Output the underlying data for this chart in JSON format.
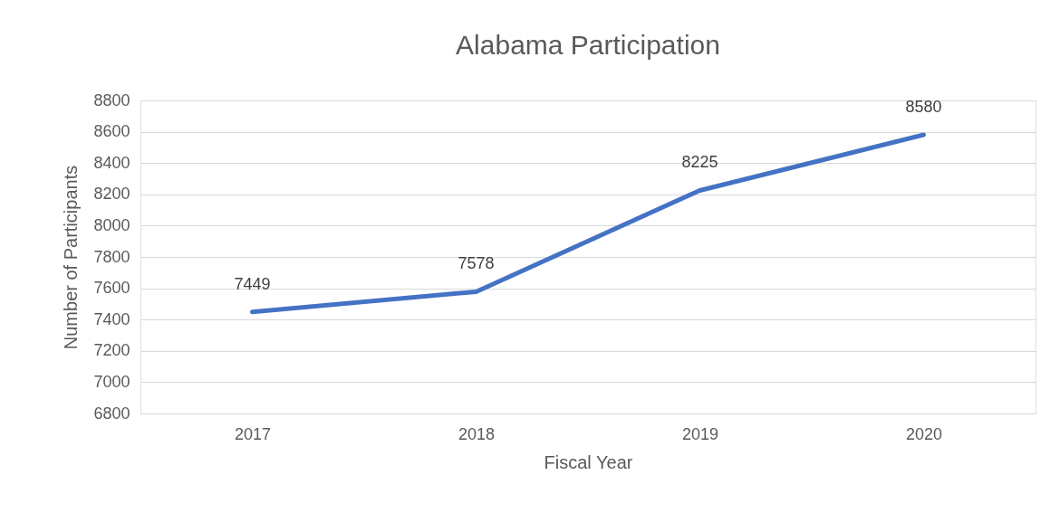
{
  "chart_data": {
    "type": "line",
    "title": "Alabama Participation",
    "xlabel": "Fiscal Year",
    "ylabel": "Number of Participants",
    "categories": [
      "2017",
      "2018",
      "2019",
      "2020"
    ],
    "series": [
      {
        "color": "#4472c4",
        "values": [
          7449,
          7578,
          8225,
          8580
        ]
      }
    ],
    "ylim": [
      6800,
      8800
    ],
    "yticks": [
      6800,
      7000,
      7200,
      7400,
      7600,
      7800,
      8000,
      8200,
      8400,
      8600,
      8800
    ],
    "grid": "y",
    "data_labels": true
  }
}
